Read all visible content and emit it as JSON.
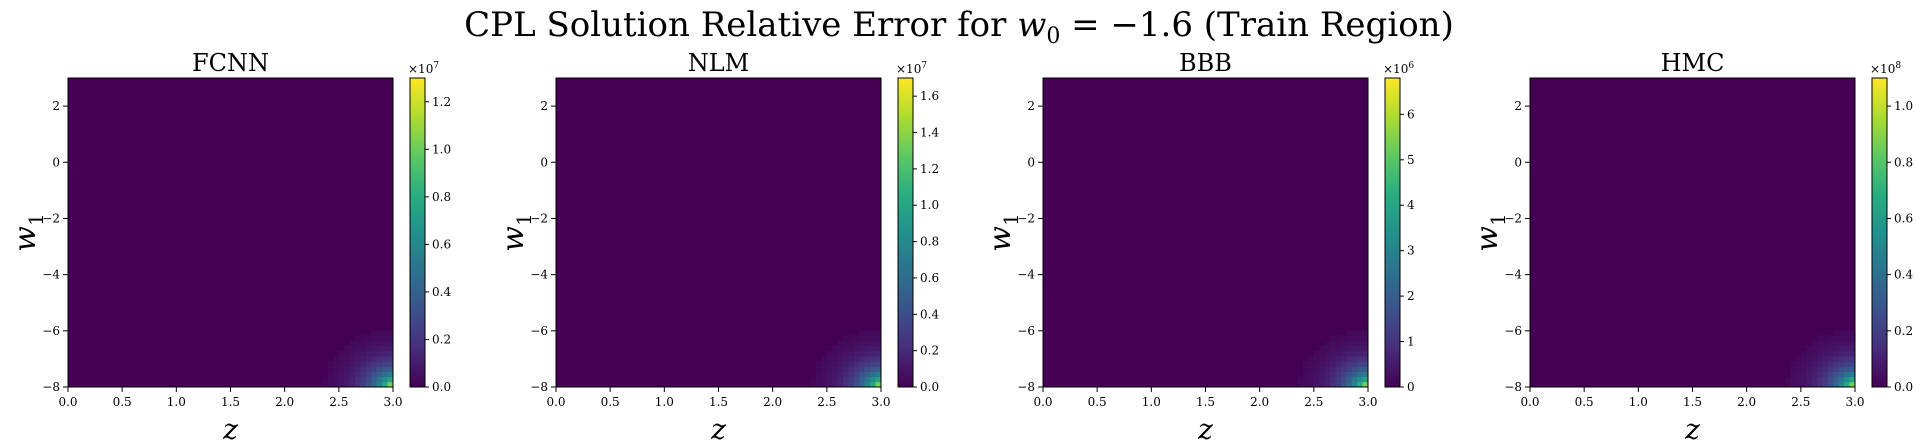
{
  "figure": {
    "title_prefix": "CPL Solution Relative Error for ",
    "title_math_var": "w",
    "title_math_sub": "0",
    "title_math_rest": " = −1.6",
    "title_suffix": " (Train Region)"
  },
  "chart_data": [
    {
      "type": "heatmap",
      "title": "FCNN",
      "xlabel": "z",
      "ylabel_var": "w",
      "ylabel_sub": "1",
      "xlim": [
        0.0,
        3.0
      ],
      "ylim": [
        -8,
        3
      ],
      "xticks": [
        "0.0",
        "0.5",
        "1.0",
        "1.5",
        "2.0",
        "2.5",
        "3.0"
      ],
      "xtick_values": [
        0.0,
        0.5,
        1.0,
        1.5,
        2.0,
        2.5,
        3.0
      ],
      "yticks": [
        "−8",
        "−6",
        "−4",
        "−2",
        "0",
        "2"
      ],
      "ytick_values": [
        -8,
        -6,
        -4,
        -2,
        0,
        2
      ],
      "colorbar": {
        "min": 0.0,
        "max": 1.3,
        "multiplier_base": "×10",
        "multiplier_exp": "7",
        "ticks": [
          "0.0",
          "0.2",
          "0.4",
          "0.6",
          "0.8",
          "1.0",
          "1.2"
        ],
        "tick_values": [
          0.0,
          0.2,
          0.4,
          0.6,
          0.8,
          1.0,
          1.2
        ]
      },
      "hotspot": "bottom-right",
      "peak": 1.3
    },
    {
      "type": "heatmap",
      "title": "NLM",
      "xlabel": "z",
      "ylabel_var": "w",
      "ylabel_sub": "1",
      "xlim": [
        0.0,
        3.0
      ],
      "ylim": [
        -8,
        3
      ],
      "xticks": [
        "0.0",
        "0.5",
        "1.0",
        "1.5",
        "2.0",
        "2.5",
        "3.0"
      ],
      "xtick_values": [
        0.0,
        0.5,
        1.0,
        1.5,
        2.0,
        2.5,
        3.0
      ],
      "yticks": [
        "−8",
        "−6",
        "−4",
        "−2",
        "0",
        "2"
      ],
      "ytick_values": [
        -8,
        -6,
        -4,
        -2,
        0,
        2
      ],
      "colorbar": {
        "min": 0.0,
        "max": 1.7,
        "multiplier_base": "×10",
        "multiplier_exp": "7",
        "ticks": [
          "0.0",
          "0.2",
          "0.4",
          "0.6",
          "0.8",
          "1.0",
          "1.2",
          "1.4",
          "1.6"
        ],
        "tick_values": [
          0.0,
          0.2,
          0.4,
          0.6,
          0.8,
          1.0,
          1.2,
          1.4,
          1.6
        ]
      },
      "hotspot": "bottom-right",
      "peak": 1.7
    },
    {
      "type": "heatmap",
      "title": "BBB",
      "xlabel": "z",
      "ylabel_var": "w",
      "ylabel_sub": "1",
      "xlim": [
        0.0,
        3.0
      ],
      "ylim": [
        -8,
        3
      ],
      "xticks": [
        "0.0",
        "0.5",
        "1.0",
        "1.5",
        "2.0",
        "2.5",
        "3.0"
      ],
      "xtick_values": [
        0.0,
        0.5,
        1.0,
        1.5,
        2.0,
        2.5,
        3.0
      ],
      "yticks": [
        "−8",
        "−6",
        "−4",
        "−2",
        "0",
        "2"
      ],
      "ytick_values": [
        -8,
        -6,
        -4,
        -2,
        0,
        2
      ],
      "colorbar": {
        "min": 0,
        "max": 6.8,
        "multiplier_base": "×10",
        "multiplier_exp": "6",
        "ticks": [
          "0",
          "1",
          "2",
          "3",
          "4",
          "5",
          "6"
        ],
        "tick_values": [
          0,
          1,
          2,
          3,
          4,
          5,
          6
        ]
      },
      "hotspot": "bottom-right",
      "peak": 6.8
    },
    {
      "type": "heatmap",
      "title": "HMC",
      "xlabel": "z",
      "ylabel_var": "w",
      "ylabel_sub": "1",
      "xlim": [
        0.0,
        3.0
      ],
      "ylim": [
        -8,
        3
      ],
      "xticks": [
        "0.0",
        "0.5",
        "1.0",
        "1.5",
        "2.0",
        "2.5",
        "3.0"
      ],
      "xtick_values": [
        0.0,
        0.5,
        1.0,
        1.5,
        2.0,
        2.5,
        3.0
      ],
      "yticks": [
        "−8",
        "−6",
        "−4",
        "−2",
        "0",
        "2"
      ],
      "ytick_values": [
        -8,
        -6,
        -4,
        -2,
        0,
        2
      ],
      "colorbar": {
        "min": 0.0,
        "max": 1.1,
        "multiplier_base": "×10",
        "multiplier_exp": "8",
        "ticks": [
          "0.0",
          "0.2",
          "0.4",
          "0.6",
          "0.8",
          "1.0"
        ],
        "tick_values": [
          0.0,
          0.2,
          0.4,
          0.6,
          0.8,
          1.0
        ]
      },
      "hotspot": "bottom-right",
      "peak": 1.1
    }
  ]
}
